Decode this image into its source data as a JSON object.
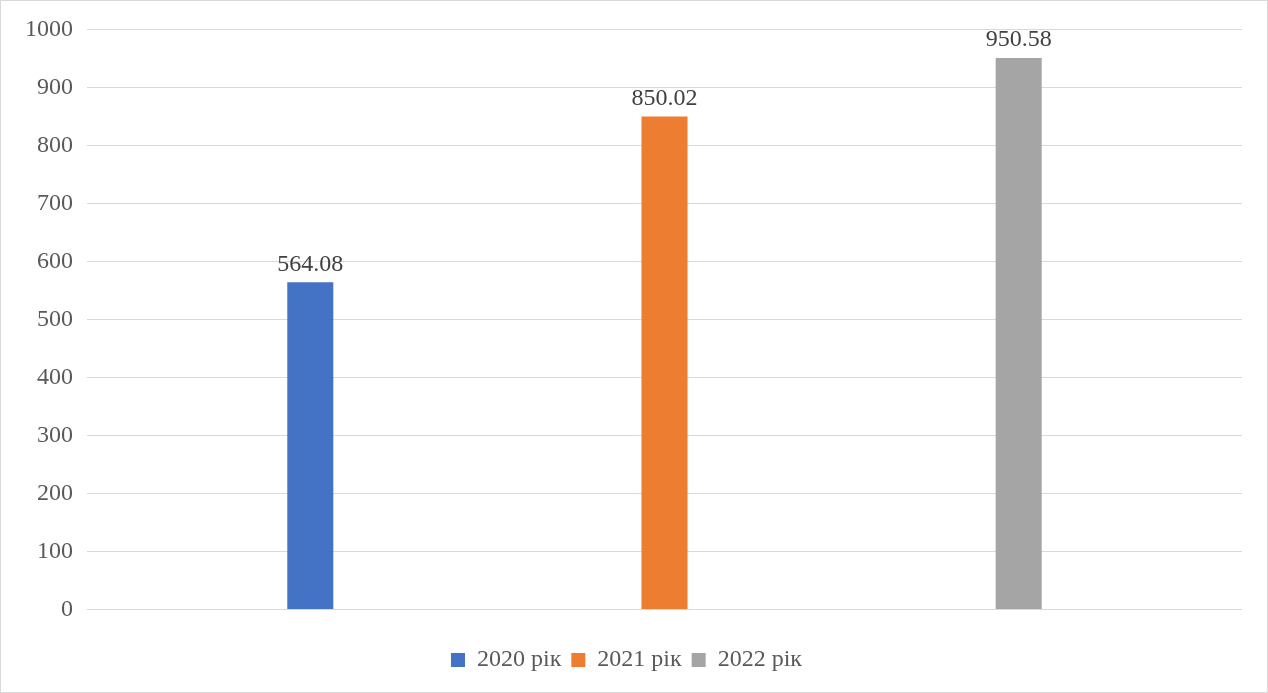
{
  "chart_data": {
    "type": "bar",
    "categories": [
      null
    ],
    "series": [
      {
        "name": "2020 рік",
        "color": "#4472c4",
        "values": [
          564.08
        ]
      },
      {
        "name": "2021 рік",
        "color": "#ed7d31",
        "values": [
          850.02
        ]
      },
      {
        "name": "2022 рік",
        "color": "#a5a5a5",
        "values": [
          950.58
        ]
      }
    ],
    "ylim": [
      0,
      1000
    ],
    "yticks": [
      0,
      100,
      200,
      300,
      400,
      500,
      600,
      700,
      800,
      900,
      1000
    ],
    "grid": "y",
    "legend": "bottom",
    "data_labels": true
  }
}
